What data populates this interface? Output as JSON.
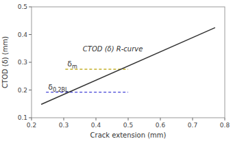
{
  "chart_data": {
    "type": "line",
    "x_label": "Crack extension (mm)",
    "y_label": "CTOD (δ) (mm)",
    "xlim": [
      0.2,
      0.8
    ],
    "ylim": [
      0.1,
      0.5
    ],
    "xticks": [
      0.2,
      0.3,
      0.4,
      0.5,
      0.6,
      0.7,
      0.8
    ],
    "yticks": [
      0.1,
      0.2,
      0.3,
      0.4,
      0.5
    ],
    "x": [
      0.23,
      0.77
    ],
    "series": [
      {
        "name": "CTOD (δ) R-curve",
        "color": "#333333",
        "values": [
          0.148,
          0.425
        ]
      }
    ],
    "hlines": [
      {
        "name": "δm",
        "y": 0.275,
        "x_start": 0.305,
        "x_end": 0.5,
        "color": "#b8a000",
        "line_style": "dashed"
      },
      {
        "name": "δ0.2BL",
        "y": 0.192,
        "x_start": 0.245,
        "x_end": 0.5,
        "color": "#1010cc",
        "line_style": "dashed"
      }
    ]
  }
}
